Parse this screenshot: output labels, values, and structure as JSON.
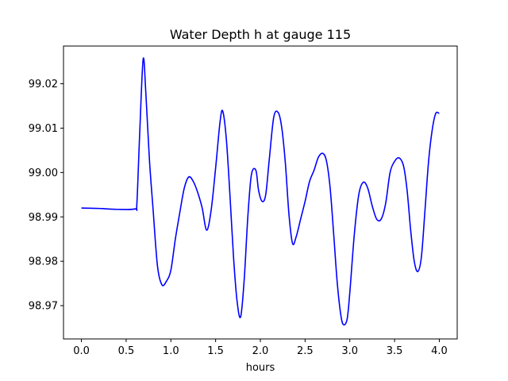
{
  "chart_data": {
    "type": "line",
    "title": "Water Depth h at gauge 115",
    "xlabel": "hours",
    "ylabel": "",
    "xlim": [
      -0.2,
      4.2
    ],
    "ylim": [
      98.9625,
      99.0285
    ],
    "xticks": [
      0.0,
      0.5,
      1.0,
      1.5,
      2.0,
      2.5,
      3.0,
      3.5,
      4.0
    ],
    "xtick_labels": [
      "0.0",
      "0.5",
      "1.0",
      "1.5",
      "2.0",
      "2.5",
      "3.0",
      "3.5",
      "4.0"
    ],
    "yticks": [
      98.97,
      98.98,
      98.99,
      99.0,
      99.01,
      99.02
    ],
    "ytick_labels": [
      "98.97",
      "98.98",
      "98.99",
      "99.00",
      "99.01",
      "99.02"
    ],
    "grid": false,
    "series": [
      {
        "color": "#0000ff",
        "x": [
          0.0,
          0.2,
          0.4,
          0.6,
          0.62,
          0.65,
          0.69,
          0.72,
          0.76,
          0.8,
          0.85,
          0.9,
          0.95,
          1.0,
          1.05,
          1.1,
          1.15,
          1.2,
          1.25,
          1.3,
          1.35,
          1.4,
          1.45,
          1.5,
          1.55,
          1.58,
          1.62,
          1.66,
          1.7,
          1.74,
          1.78,
          1.82,
          1.86,
          1.9,
          1.95,
          1.98,
          2.02,
          2.06,
          2.1,
          2.15,
          2.2,
          2.24,
          2.28,
          2.32,
          2.36,
          2.4,
          2.45,
          2.5,
          2.55,
          2.6,
          2.65,
          2.7,
          2.74,
          2.78,
          2.82,
          2.86,
          2.9,
          2.93,
          2.97,
          3.0,
          3.05,
          3.1,
          3.15,
          3.2,
          3.25,
          3.3,
          3.35,
          3.4,
          3.45,
          3.5,
          3.55,
          3.6,
          3.64,
          3.68,
          3.72,
          3.76,
          3.8,
          3.84,
          3.88,
          3.92,
          3.96,
          4.0
        ],
        "values": [
          98.992,
          98.9919,
          98.9917,
          98.9918,
          98.993,
          99.008,
          99.0255,
          99.018,
          99.003,
          98.992,
          98.979,
          98.9747,
          98.9755,
          98.978,
          98.985,
          98.991,
          98.9965,
          98.999,
          98.998,
          98.9955,
          98.992,
          98.987,
          98.9915,
          99.001,
          99.0115,
          99.0138,
          99.0075,
          98.995,
          98.981,
          98.971,
          98.9675,
          98.976,
          98.99,
          98.9995,
          99.0005,
          98.996,
          98.9935,
          98.995,
          99.003,
          99.0125,
          99.0135,
          99.01,
          99.002,
          98.9905,
          98.984,
          98.9855,
          98.9895,
          98.9935,
          98.998,
          99.0005,
          99.0035,
          99.0043,
          99.0025,
          98.9965,
          98.986,
          98.975,
          98.9678,
          98.9657,
          98.967,
          98.973,
          98.986,
          98.995,
          98.9978,
          98.9965,
          98.9925,
          98.9895,
          98.9895,
          98.993,
          99.0,
          99.0025,
          99.0033,
          99.0015,
          98.996,
          98.987,
          98.98,
          98.9777,
          98.981,
          98.9915,
          99.0025,
          99.0095,
          99.0133,
          99.0133
        ]
      }
    ]
  }
}
